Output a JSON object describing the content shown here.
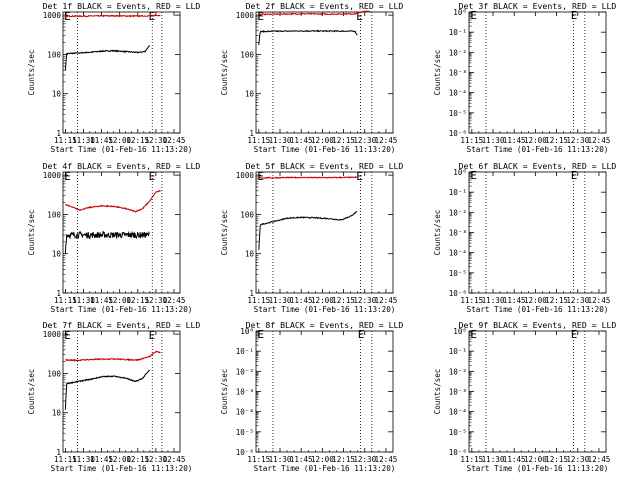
{
  "colors": {
    "events": "#000000",
    "lld": "#cc0000",
    "axis": "#000000",
    "background": "#ffffff"
  },
  "chart_data": [
    {
      "type": "line",
      "title": "Det 1f BLACK = Events, RED = LLD",
      "xlabel": "Start Time (01-Feb-16 11:13:20)",
      "ylabel": "Counts/sec",
      "x_ticks": [
        "11:15",
        "11:30",
        "11:45",
        "12:00",
        "12:15",
        "12:30",
        "12:45"
      ],
      "y_scale": "log",
      "y_ticks": [
        "1",
        "10",
        "100",
        "1000"
      ],
      "ylim": [
        1,
        1200
      ],
      "xlim_minutes": [
        -2,
        95
      ],
      "dotted_vlines_minutes": [
        10,
        72,
        80
      ],
      "markers": [
        {
          "label": "E",
          "x_minutes": -1,
          "y": 950
        },
        {
          "label": "E",
          "x_minutes": 69,
          "y": 950
        }
      ],
      "series": [
        {
          "name": "Events",
          "color": "#000000",
          "start": 0,
          "end": 70,
          "profile": "d1_events"
        },
        {
          "name": "LLD",
          "color": "#cc0000",
          "start": 0,
          "end": 79,
          "profile": "d1_lld"
        }
      ]
    },
    {
      "type": "line",
      "title": "Det 2f BLACK = Events, RED = LLD",
      "xlabel": "Start Time (01-Feb-16 11:13:20)",
      "ylabel": "Counts/sec",
      "x_ticks": [
        "11:15",
        "11:30",
        "11:45",
        "12:00",
        "12:15",
        "12:30",
        "12:45"
      ],
      "y_scale": "log",
      "y_ticks": [
        "1",
        "10",
        "100",
        "1000"
      ],
      "ylim": [
        1,
        1200
      ],
      "xlim_minutes": [
        -2,
        95
      ],
      "dotted_vlines_minutes": [
        10,
        72,
        80
      ],
      "markers": [
        {
          "label": "E",
          "x_minutes": -1,
          "y": 950
        },
        {
          "label": "E",
          "x_minutes": 69,
          "y": 950
        }
      ],
      "series": [
        {
          "name": "Events",
          "color": "#000000",
          "start": 0,
          "end": 70,
          "profile": "d2_events"
        },
        {
          "name": "LLD",
          "color": "#cc0000",
          "start": 0,
          "end": 79,
          "profile": "d2_lld"
        }
      ]
    },
    {
      "type": "line",
      "title": "Det 3f BLACK = Events, RED = LLD",
      "xlabel": "Start Time (01-Feb-16 11:13:20)",
      "ylabel": "Counts/sec",
      "x_ticks": [
        "11:15",
        "11:30",
        "11:45",
        "12:00",
        "12:15",
        "12:30",
        "12:45"
      ],
      "y_scale": "log",
      "y_ticks": [
        "10⁰",
        "10⁻¹",
        "10⁻²",
        "10⁻³",
        "10⁻⁴",
        "10⁻⁵",
        "10⁻⁶"
      ],
      "ylim": [
        1e-06,
        1
      ],
      "xlim_minutes": [
        -2,
        95
      ],
      "dotted_vlines_minutes": [
        10,
        72,
        80
      ],
      "markers": [
        {
          "label": "E",
          "x_minutes": -1,
          "y": 0.7
        },
        {
          "label": "E",
          "x_minutes": 70,
          "y": 0.7
        }
      ],
      "series": []
    },
    {
      "type": "line",
      "title": "Det 4f BLACK = Events, RED = LLD",
      "xlabel": "Start Time (01-Feb-16 11:13:20)",
      "ylabel": "Counts/sec",
      "x_ticks": [
        "11:15",
        "11:30",
        "11:45",
        "12:00",
        "12:15",
        "12:30",
        "12:45"
      ],
      "y_scale": "log",
      "y_ticks": [
        "1",
        "10",
        "100",
        "1000"
      ],
      "ylim": [
        1,
        1200
      ],
      "xlim_minutes": [
        -2,
        95
      ],
      "dotted_vlines_minutes": [
        10,
        72,
        80
      ],
      "markers": [
        {
          "label": "E",
          "x_minutes": -1,
          "y": 950
        },
        {
          "label": "E",
          "x_minutes": 69,
          "y": 950
        }
      ],
      "series": [
        {
          "name": "Events",
          "color": "#000000",
          "start": 0,
          "end": 70,
          "profile": "d4_events"
        },
        {
          "name": "LLD",
          "color": "#cc0000",
          "start": 0,
          "end": 79,
          "profile": "d4_lld"
        }
      ]
    },
    {
      "type": "line",
      "title": "Det 5f BLACK = Events, RED = LLD",
      "xlabel": "Start Time (01-Feb-16 11:13:20)",
      "ylabel": "Counts/sec",
      "x_ticks": [
        "11:15",
        "11:30",
        "11:45",
        "12:00",
        "12:15",
        "12:30",
        "12:45"
      ],
      "y_scale": "log",
      "y_ticks": [
        "1",
        "10",
        "100",
        "1000"
      ],
      "ylim": [
        1,
        1200
      ],
      "xlim_minutes": [
        -2,
        95
      ],
      "dotted_vlines_minutes": [
        10,
        72,
        80
      ],
      "markers": [
        {
          "label": "E",
          "x_minutes": -1,
          "y": 950
        },
        {
          "label": "E",
          "x_minutes": 69,
          "y": 950
        }
      ],
      "series": [
        {
          "name": "Events",
          "color": "#000000",
          "start": 0,
          "end": 70,
          "profile": "d5_events"
        },
        {
          "name": "LLD",
          "color": "#cc0000",
          "start": 0,
          "end": 70,
          "profile": "d5_lld"
        }
      ]
    },
    {
      "type": "line",
      "title": "Det 6f BLACK = Events, RED = LLD",
      "xlabel": "Start Time (01-Feb-16 11:13:20)",
      "ylabel": "Counts/sec",
      "x_ticks": [
        "11:15",
        "11:30",
        "11:45",
        "12:00",
        "12:15",
        "12:30",
        "12:45"
      ],
      "y_scale": "log",
      "y_ticks": [
        "10⁰",
        "10⁻¹",
        "10⁻²",
        "10⁻³",
        "10⁻⁴",
        "10⁻⁵",
        "10⁻⁶"
      ],
      "ylim": [
        1e-06,
        1
      ],
      "xlim_minutes": [
        -2,
        95
      ],
      "dotted_vlines_minutes": [
        10,
        72,
        80
      ],
      "markers": [
        {
          "label": "E",
          "x_minutes": -1,
          "y": 0.7
        },
        {
          "label": "E",
          "x_minutes": 70,
          "y": 0.7
        }
      ],
      "series": []
    },
    {
      "type": "line",
      "title": "Det 7f BLACK = Events, RED = LLD",
      "xlabel": "Start Time (01-Feb-16 11:13:20)",
      "ylabel": "Counts/sec",
      "x_ticks": [
        "11:15",
        "11:30",
        "11:45",
        "12:00",
        "12:15",
        "12:30",
        "12:45"
      ],
      "y_scale": "log",
      "y_ticks": [
        "1",
        "10",
        "100",
        "1000"
      ],
      "ylim": [
        1,
        1200
      ],
      "xlim_minutes": [
        -2,
        95
      ],
      "dotted_vlines_minutes": [
        10,
        72,
        80
      ],
      "markers": [
        {
          "label": "E",
          "x_minutes": -1,
          "y": 950
        },
        {
          "label": "E",
          "x_minutes": 69,
          "y": 950
        }
      ],
      "series": [
        {
          "name": "Events",
          "color": "#000000",
          "start": 0,
          "end": 70,
          "profile": "d7_events"
        },
        {
          "name": "LLD",
          "color": "#cc0000",
          "start": 0,
          "end": 79,
          "profile": "d7_lld"
        }
      ]
    },
    {
      "type": "line",
      "title": "Det 8f BLACK = Events, RED = LLD",
      "xlabel": "Start Time (01-Feb-16 11:13:20)",
      "ylabel": "Counts/sec",
      "x_ticks": [
        "11:15",
        "11:30",
        "11:45",
        "12:00",
        "12:15",
        "12:30",
        "12:45"
      ],
      "y_scale": "log",
      "y_ticks": [
        "10⁰",
        "10⁻¹",
        "10⁻²",
        "10⁻³",
        "10⁻⁴",
        "10⁻⁵",
        "10⁻⁶"
      ],
      "ylim": [
        1e-06,
        1
      ],
      "xlim_minutes": [
        -2,
        95
      ],
      "dotted_vlines_minutes": [
        10,
        72,
        80
      ],
      "markers": [
        {
          "label": "E",
          "x_minutes": -1,
          "y": 0.7
        },
        {
          "label": "E",
          "x_minutes": 70,
          "y": 0.7
        }
      ],
      "series": []
    },
    {
      "type": "line",
      "title": "Det 9f BLACK = Events, RED = LLD",
      "xlabel": "Start Time (01-Feb-16 11:13:20)",
      "ylabel": "Counts/sec",
      "x_ticks": [
        "11:15",
        "11:30",
        "11:45",
        "12:00",
        "12:15",
        "12:30",
        "12:45"
      ],
      "y_scale": "log",
      "y_ticks": [
        "10⁰",
        "10⁻¹",
        "10⁻²",
        "10⁻³",
        "10⁻⁴",
        "10⁻⁵",
        "10⁻⁶"
      ],
      "ylim": [
        1e-06,
        1
      ],
      "xlim_minutes": [
        -2,
        95
      ],
      "dotted_vlines_minutes": [
        10,
        72,
        80
      ],
      "markers": [
        {
          "label": "E",
          "x_minutes": -1,
          "y": 0.7
        },
        {
          "label": "E",
          "x_minutes": 70,
          "y": 0.7
        }
      ],
      "series": []
    }
  ],
  "profiles": {
    "d1_events": [
      [
        0,
        40
      ],
      [
        1,
        105
      ],
      [
        10,
        108
      ],
      [
        20,
        113
      ],
      [
        30,
        121
      ],
      [
        40,
        124
      ],
      [
        50,
        118
      ],
      [
        60,
        112
      ],
      [
        66,
        118
      ],
      [
        70,
        175
      ],
      [
        70.5,
        60
      ]
    ],
    "d1_lld": [
      [
        0,
        950
      ],
      [
        10,
        940
      ],
      [
        25,
        950
      ],
      [
        40,
        960
      ],
      [
        55,
        945
      ],
      [
        70,
        955
      ],
      [
        76,
        990
      ],
      [
        79,
        980
      ]
    ],
    "d2_events": [
      [
        0,
        180
      ],
      [
        1,
        380
      ],
      [
        10,
        388
      ],
      [
        30,
        395
      ],
      [
        50,
        392
      ],
      [
        68,
        390
      ],
      [
        70,
        300
      ],
      [
        70.5,
        180
      ]
    ],
    "d2_lld": [
      [
        0,
        1050
      ],
      [
        10,
        1060
      ],
      [
        30,
        1080
      ],
      [
        50,
        1060
      ],
      [
        68,
        1080
      ],
      [
        75,
        1250
      ],
      [
        79,
        1220
      ]
    ],
    "d4_events": [
      [
        0,
        12
      ],
      [
        1,
        30
      ],
      [
        70,
        30
      ],
      [
        70.5,
        14
      ]
    ],
    "d4_lld": [
      [
        0,
        180
      ],
      [
        5,
        155
      ],
      [
        12,
        130
      ],
      [
        20,
        150
      ],
      [
        30,
        165
      ],
      [
        40,
        160
      ],
      [
        50,
        140
      ],
      [
        58,
        118
      ],
      [
        64,
        140
      ],
      [
        70,
        220
      ],
      [
        75,
        370
      ],
      [
        79,
        400
      ]
    ],
    "d5_events": [
      [
        0,
        12
      ],
      [
        1,
        55
      ],
      [
        10,
        65
      ],
      [
        20,
        80
      ],
      [
        30,
        84
      ],
      [
        40,
        82
      ],
      [
        50,
        78
      ],
      [
        58,
        72
      ],
      [
        65,
        90
      ],
      [
        70,
        120
      ],
      [
        70.5,
        55
      ]
    ],
    "d5_lld": [
      [
        0,
        850
      ],
      [
        15,
        860
      ],
      [
        30,
        870
      ],
      [
        45,
        860
      ],
      [
        60,
        870
      ],
      [
        70,
        880
      ]
    ],
    "d7_events": [
      [
        0,
        12
      ],
      [
        1,
        55
      ],
      [
        10,
        62
      ],
      [
        20,
        70
      ],
      [
        30,
        82
      ],
      [
        40,
        85
      ],
      [
        50,
        76
      ],
      [
        58,
        62
      ],
      [
        64,
        75
      ],
      [
        70,
        125
      ],
      [
        70.5,
        45
      ]
    ],
    "d7_lld": [
      [
        0,
        220
      ],
      [
        10,
        215
      ],
      [
        20,
        225
      ],
      [
        30,
        230
      ],
      [
        40,
        235
      ],
      [
        50,
        225
      ],
      [
        60,
        220
      ],
      [
        70,
        270
      ],
      [
        75,
        360
      ],
      [
        79,
        340
      ]
    ]
  }
}
